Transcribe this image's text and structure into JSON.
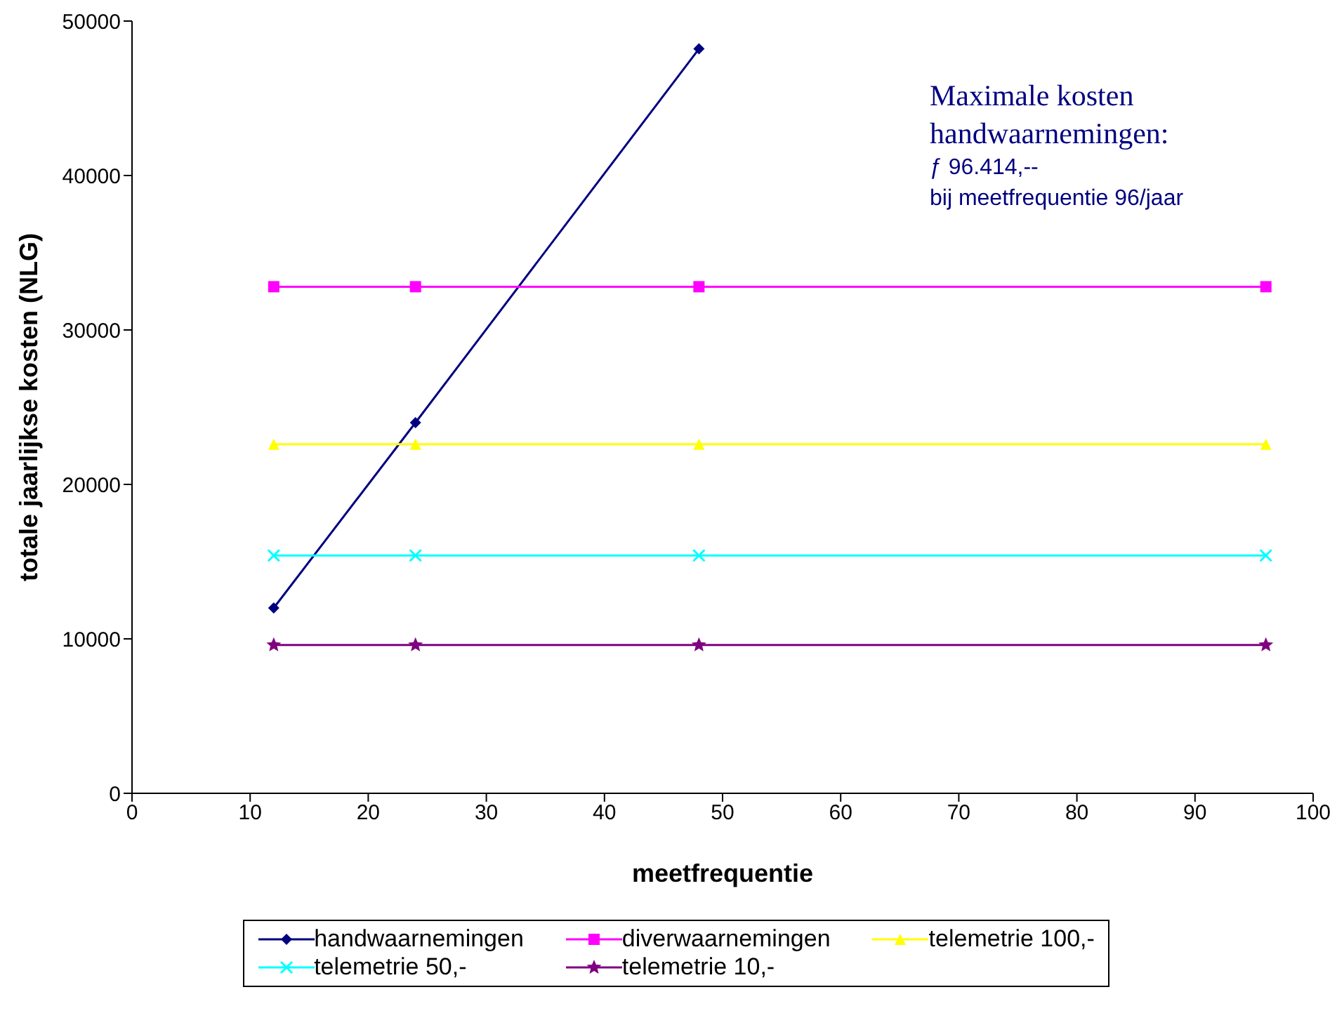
{
  "chart_data": {
    "type": "line",
    "xlabel": "meetfrequentie",
    "ylabel": "totale jaarlijkse kosten (NLG)",
    "x": [
      12,
      24,
      48,
      96
    ],
    "series": [
      {
        "name": "handwaarnemingen",
        "color": "#000080",
        "marker": "diamond",
        "values": [
          12000,
          24000,
          48200,
          null
        ]
      },
      {
        "name": "diverwaarnemingen",
        "color": "#ff00ff",
        "marker": "square",
        "values": [
          32800,
          32800,
          32800,
          32800
        ]
      },
      {
        "name": "telemetrie 100,-",
        "color": "#ffff00",
        "marker": "triangle",
        "values": [
          22600,
          22600,
          22600,
          22600
        ]
      },
      {
        "name": "telemetrie 50,-",
        "color": "#00ffff",
        "marker": "cross",
        "values": [
          15400,
          15400,
          15400,
          15400
        ]
      },
      {
        "name": "telemetrie 10,-",
        "color": "#800080",
        "marker": "star",
        "values": [
          9600,
          9600,
          9600,
          9600
        ]
      }
    ],
    "xlim": [
      0,
      100
    ],
    "xticks": [
      0,
      10,
      20,
      30,
      40,
      50,
      60,
      70,
      80,
      90,
      100
    ],
    "ylim": [
      0,
      50000
    ],
    "yticks": [
      0,
      10000,
      20000,
      30000,
      40000,
      50000
    ],
    "grid": false,
    "legend": "bottom",
    "line_style": "solid",
    "annotations": [
      "Maximale kosten",
      "handwaarnemingen:",
      "ƒ 96.414,--",
      "bij meetfrequentie 96/jaar"
    ]
  }
}
